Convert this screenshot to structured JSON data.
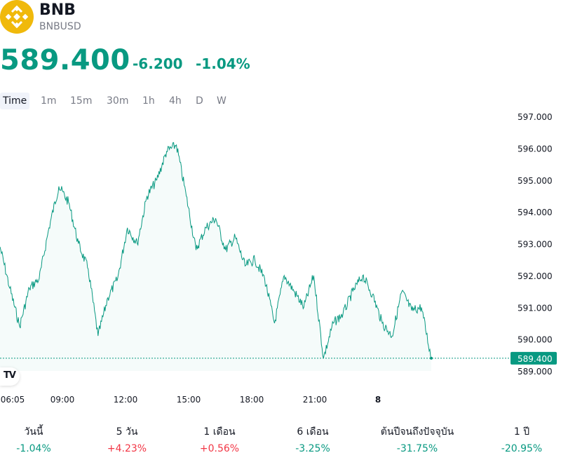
{
  "header": {
    "name": "BNB",
    "ticker": "BNBUSD",
    "logo_icon": "binance-logo-icon",
    "brand_color": "#f0b90b"
  },
  "quote": {
    "price": "589.400",
    "change": "-6.200",
    "change_percent": "-1.04%",
    "color": "#089981"
  },
  "timeframes": [
    {
      "label": "Time",
      "active": true
    },
    {
      "label": "1m",
      "active": false
    },
    {
      "label": "15m",
      "active": false
    },
    {
      "label": "30m",
      "active": false
    },
    {
      "label": "1h",
      "active": false
    },
    {
      "label": "4h",
      "active": false
    },
    {
      "label": "D",
      "active": false
    },
    {
      "label": "W",
      "active": false
    }
  ],
  "chart_data": {
    "type": "area",
    "title": "",
    "xlabel": "",
    "ylabel": "",
    "ylim": [
      589.0,
      597.0
    ],
    "yticks": [
      "597.000",
      "596.000",
      "595.000",
      "594.000",
      "593.000",
      "592.000",
      "591.000",
      "590.000",
      "589.000"
    ],
    "xticks": [
      "06:05",
      "09:00",
      "12:00",
      "15:00",
      "18:00",
      "21:00",
      "8"
    ],
    "last_price_label": "589.400",
    "line_color": "#089981",
    "series": [
      {
        "x": [
          "06:05",
          "06:30",
          "07:00",
          "07:30",
          "08:00",
          "08:30",
          "08:45",
          "09:00",
          "09:30",
          "10:00",
          "10:30",
          "11:00",
          "11:30",
          "12:00",
          "12:30",
          "13:00",
          "13:30",
          "14:00",
          "14:15",
          "14:30",
          "15:00",
          "15:30",
          "16:00",
          "16:30",
          "17:00",
          "17:30",
          "18:00",
          "18:30",
          "19:00",
          "19:30",
          "20:00",
          "20:30",
          "21:00",
          "21:15",
          "21:30",
          "22:00",
          "22:30",
          "23:00",
          "23:15",
          "23:30",
          "00:00",
          "00:30",
          "01:00",
          "01:30",
          "01:35"
        ],
        "values": [
          592.9,
          591.6,
          590.4,
          591.6,
          591.9,
          593.5,
          594.8,
          594.3,
          593.0,
          592.2,
          590.1,
          591.3,
          591.9,
          593.5,
          593.0,
          594.5,
          595.0,
          595.9,
          596.1,
          594.5,
          592.8,
          593.5,
          593.8,
          592.8,
          593.2,
          592.3,
          592.5,
          591.9,
          590.5,
          592.0,
          591.5,
          591.0,
          592.0,
          589.4,
          590.5,
          590.8,
          591.5,
          592.0,
          591.4,
          590.5,
          590.1,
          591.5,
          590.9,
          591.0,
          589.4
        ]
      }
    ]
  },
  "performance": [
    {
      "label": "วันนี้",
      "value": "-1.04%",
      "color": "#089981"
    },
    {
      "label": "5 วัน",
      "value": "+4.23%",
      "color": "#f23645"
    },
    {
      "label": "1 เดือน",
      "value": "+0.56%",
      "color": "#f23645"
    },
    {
      "label": "6 เดือน",
      "value": "-3.25%",
      "color": "#089981"
    },
    {
      "label": "ต้นปีจนถึงปัจจุบัน",
      "value": "-31.75%",
      "color": "#089981"
    },
    {
      "label": "1 ปี",
      "value": "-20.95%",
      "color": "#089981"
    }
  ],
  "branding": {
    "tv_logo_text": "TV",
    "tv_icon": "tradingview-logo-icon"
  }
}
